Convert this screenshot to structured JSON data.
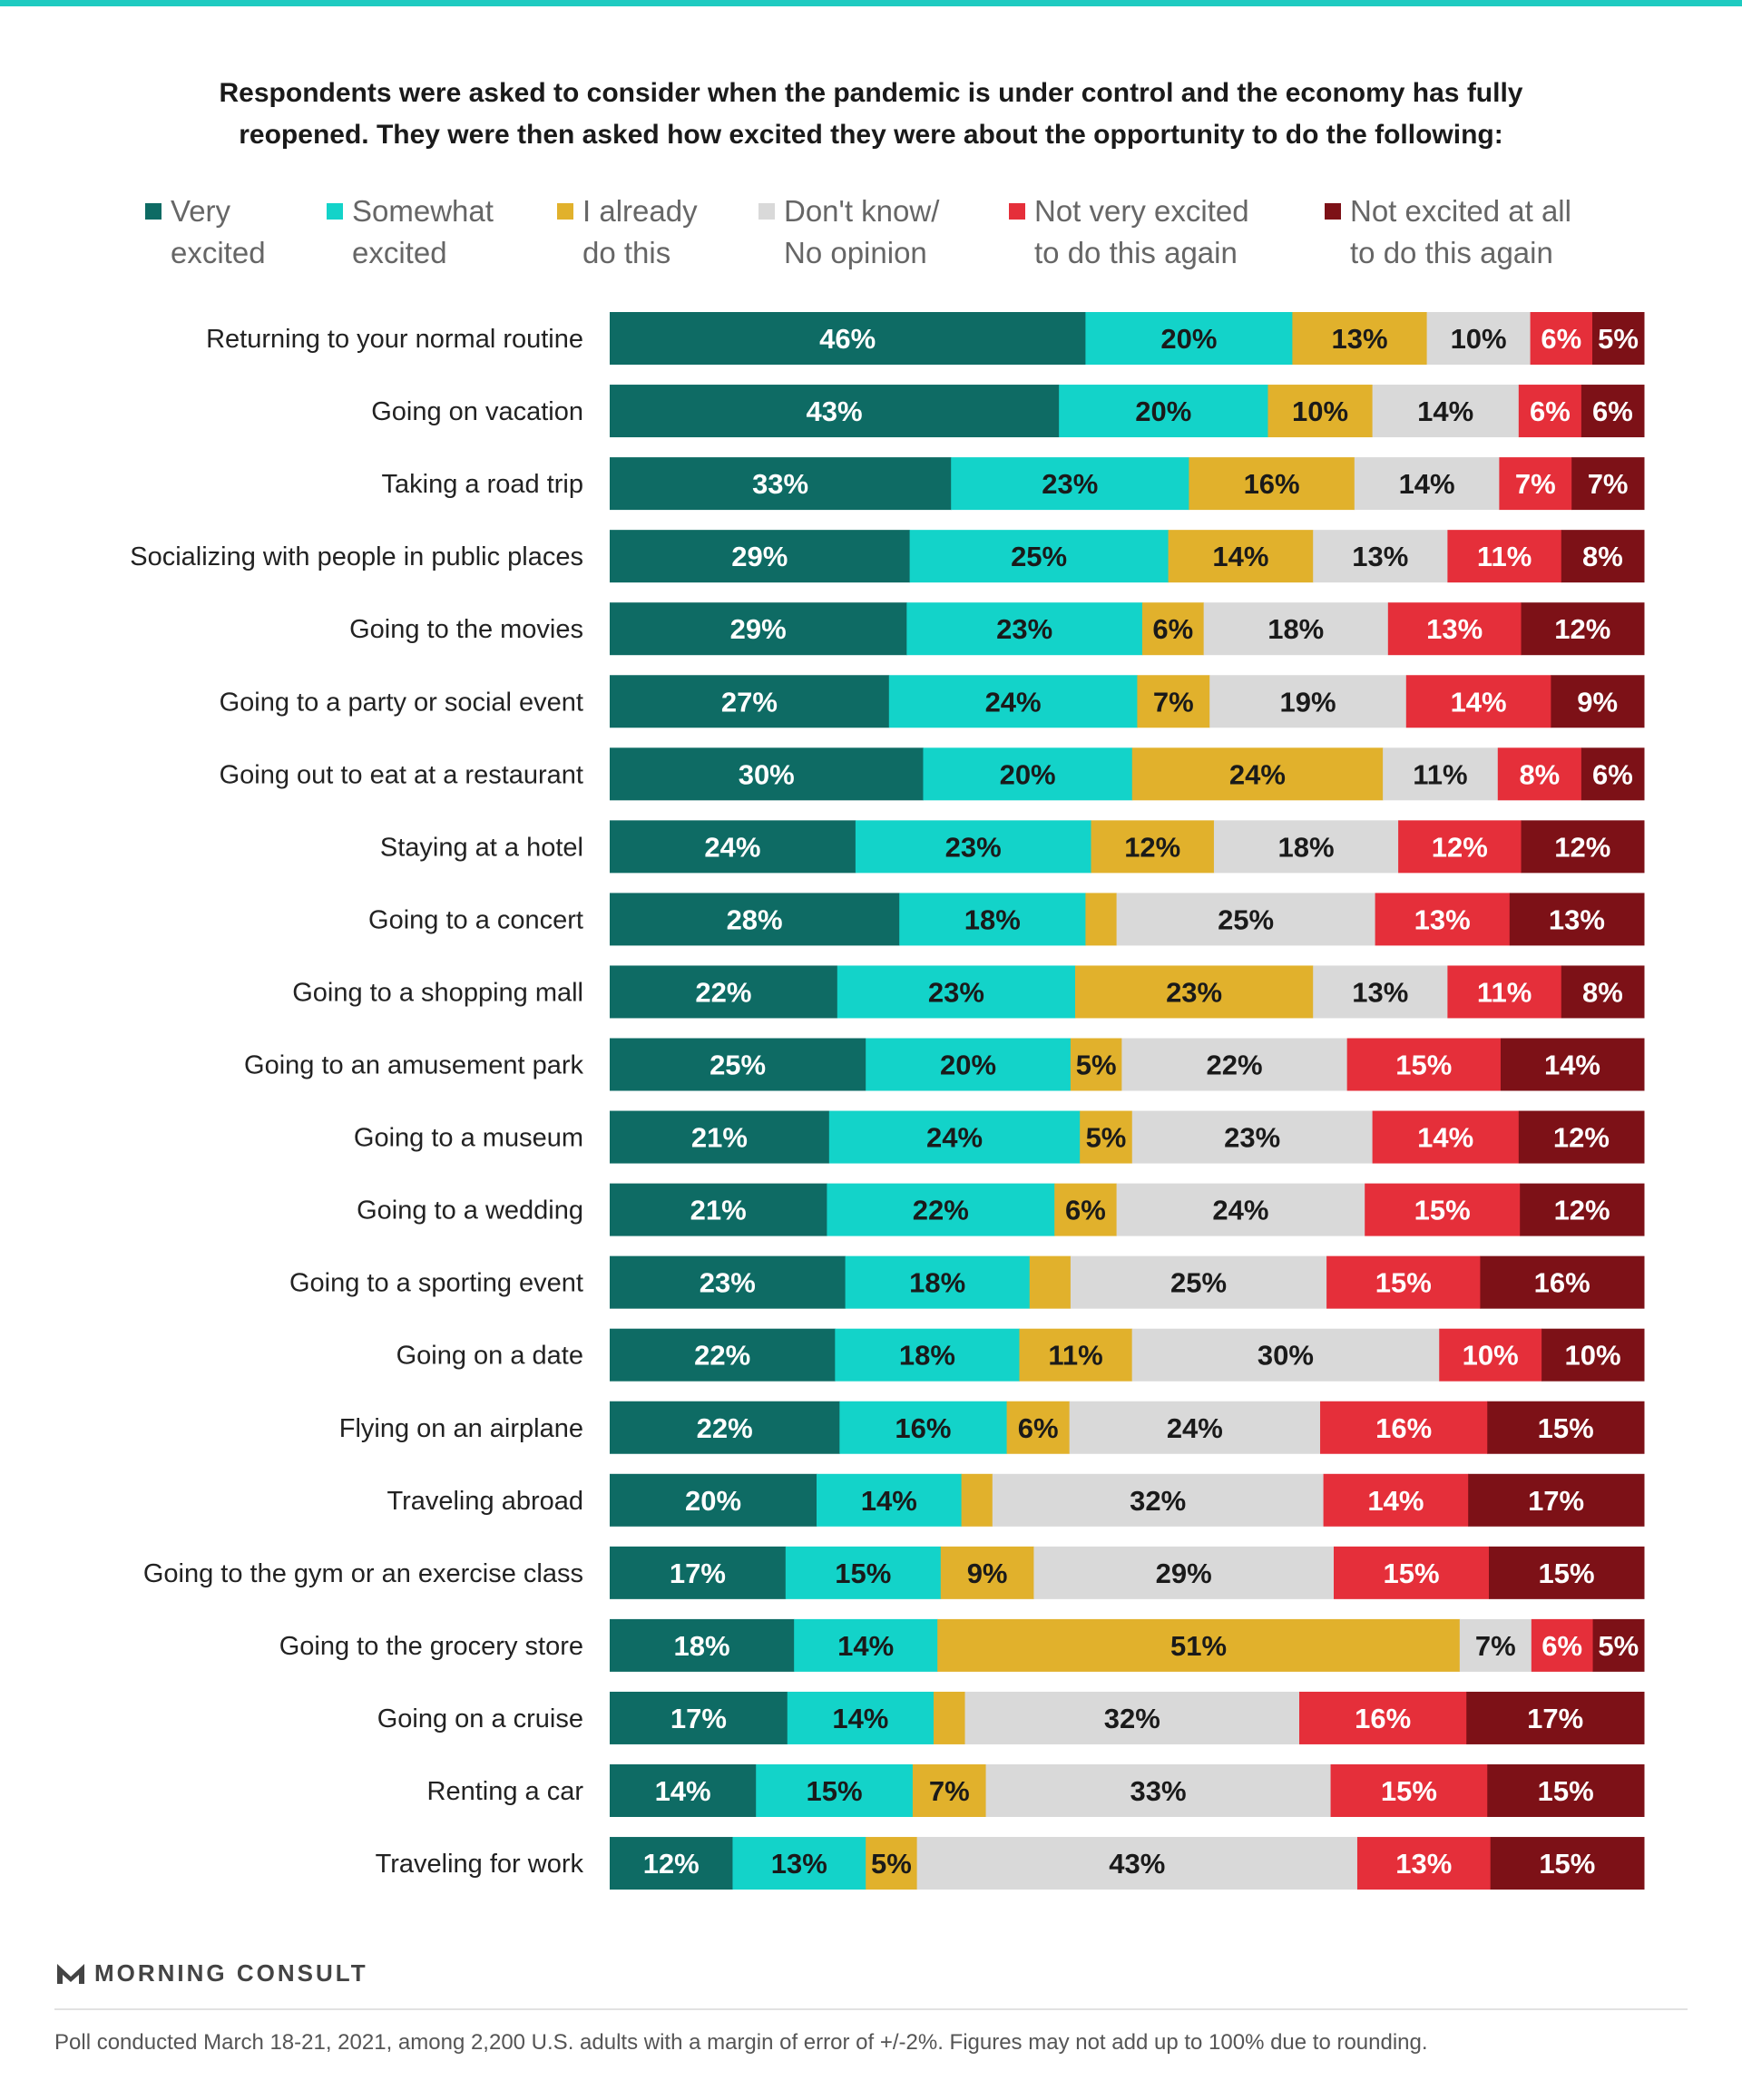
{
  "title": {
    "line1": "Respondents were asked to consider when the pandemic is under control and the economy has fully",
    "line2": "reopened. They were then asked how excited they were about the opportunity to do the following:"
  },
  "colors": {
    "very_excited": "#0e6b64",
    "somewhat_excited": "#13d3c9",
    "already_do": "#e1b12c",
    "dont_know": "#d9d9d9",
    "not_very_excited": "#e52f3a",
    "not_excited_at_all": "#7d1117"
  },
  "chart_data": {
    "type": "bar",
    "orientation": "horizontal",
    "stacked": true,
    "xlim": [
      0,
      100
    ],
    "grid": false,
    "legend_position": "top",
    "categories": [
      "Returning to your normal routine",
      "Going on vacation",
      "Taking a road trip",
      "Socializing with people in public places",
      "Going to the movies",
      "Going to a party or social event",
      "Going out to eat at a restaurant",
      "Staying at a hotel",
      "Going to a concert",
      "Going to a shopping mall",
      "Going to an amusement park",
      "Going to a museum",
      "Going to a wedding",
      "Going to a sporting event",
      "Going on a date",
      "Flying on an airplane",
      "Traveling abroad",
      "Going to the gym or an exercise class",
      "Going to the grocery store",
      "Going on a cruise",
      "Renting a car",
      "Traveling for work"
    ],
    "series": [
      {
        "name": "Very excited",
        "legend_lines": [
          "Very",
          "excited"
        ],
        "color": "#0e6b64",
        "label_color": "#ffffff",
        "values": [
          46,
          43,
          33,
          29,
          29,
          27,
          30,
          24,
          28,
          22,
          25,
          21,
          21,
          23,
          22,
          22,
          20,
          17,
          18,
          17,
          14,
          12
        ],
        "labels": [
          "46%",
          "43%",
          "33%",
          "29%",
          "29%",
          "27%",
          "30%",
          "24%",
          "28%",
          "22%",
          "25%",
          "21%",
          "21%",
          "23%",
          "22%",
          "22%",
          "20%",
          "17%",
          "18%",
          "17%",
          "14%",
          "12%"
        ]
      },
      {
        "name": "Somewhat excited",
        "legend_lines": [
          "Somewhat",
          "excited"
        ],
        "color": "#13d3c9",
        "label_color": "#1a1a1a",
        "values": [
          20,
          20,
          23,
          25,
          23,
          24,
          20,
          23,
          18,
          23,
          20,
          24,
          22,
          18,
          18,
          16,
          14,
          15,
          14,
          14,
          15,
          13
        ],
        "labels": [
          "20%",
          "20%",
          "23%",
          "25%",
          "23%",
          "24%",
          "20%",
          "23%",
          "18%",
          "23%",
          "20%",
          "24%",
          "22%",
          "18%",
          "18%",
          "16%",
          "14%",
          "15%",
          "14%",
          "14%",
          "15%",
          "13%"
        ]
      },
      {
        "name": "I already do this",
        "legend_lines": [
          "I already",
          "do this"
        ],
        "color": "#e1b12c",
        "label_color": "#1a1a1a",
        "values": [
          13,
          10,
          16,
          14,
          6,
          7,
          24,
          12,
          3,
          23,
          5,
          5,
          6,
          4,
          11,
          6,
          3,
          9,
          51,
          3,
          7,
          5
        ],
        "labels": [
          "13%",
          "10%",
          "16%",
          "14%",
          "6%",
          "7%",
          "24%",
          "12%",
          "",
          "23%",
          "5%",
          "5%",
          "6%",
          "",
          "11%",
          "6%",
          "",
          "9%",
          "51%",
          "",
          "7%",
          "5%"
        ]
      },
      {
        "name": "Don't know/ No opinion",
        "legend_lines": [
          "Don't know/",
          "No opinion"
        ],
        "color": "#d9d9d9",
        "label_color": "#1a1a1a",
        "values": [
          10,
          14,
          14,
          13,
          18,
          19,
          11,
          18,
          25,
          13,
          22,
          23,
          24,
          25,
          30,
          24,
          32,
          29,
          7,
          32,
          33,
          43
        ],
        "labels": [
          "10%",
          "14%",
          "14%",
          "13%",
          "18%",
          "19%",
          "11%",
          "18%",
          "25%",
          "13%",
          "22%",
          "23%",
          "24%",
          "25%",
          "30%",
          "24%",
          "32%",
          "29%",
          "7%",
          "32%",
          "33%",
          "43%"
        ]
      },
      {
        "name": "Not very excited to do this again",
        "legend_lines": [
          "Not very excited",
          "to do this again"
        ],
        "color": "#e52f3a",
        "label_color": "#ffffff",
        "values": [
          6,
          6,
          7,
          11,
          13,
          14,
          8,
          12,
          13,
          11,
          15,
          14,
          15,
          15,
          10,
          16,
          14,
          15,
          6,
          16,
          15,
          13
        ],
        "labels": [
          "6%",
          "6%",
          "7%",
          "11%",
          "13%",
          "14%",
          "8%",
          "12%",
          "13%",
          "11%",
          "15%",
          "14%",
          "15%",
          "15%",
          "10%",
          "16%",
          "14%",
          "15%",
          "6%",
          "16%",
          "15%",
          "13%"
        ]
      },
      {
        "name": "Not excited at all to do this again",
        "legend_lines": [
          "Not excited at all",
          "to do this again"
        ],
        "color": "#7d1117",
        "label_color": "#ffffff",
        "values": [
          5,
          6,
          7,
          8,
          12,
          9,
          6,
          12,
          13,
          8,
          14,
          12,
          12,
          16,
          10,
          15,
          17,
          15,
          5,
          17,
          15,
          15
        ],
        "labels": [
          "5%",
          "6%",
          "7%",
          "8%",
          "12%",
          "9%",
          "6%",
          "12%",
          "13%",
          "8%",
          "14%",
          "12%",
          "12%",
          "16%",
          "10%",
          "15%",
          "17%",
          "15%",
          "5%",
          "17%",
          "15%",
          "15%"
        ]
      }
    ]
  },
  "branding": {
    "logo_text": "MORNING CONSULT",
    "logo_icon": "morning-consult-m-icon"
  },
  "footnote": "Poll conducted March 18-21, 2021, among 2,200 U.S. adults with a margin of error of +/-2%. Figures may not add up to 100% due to rounding."
}
